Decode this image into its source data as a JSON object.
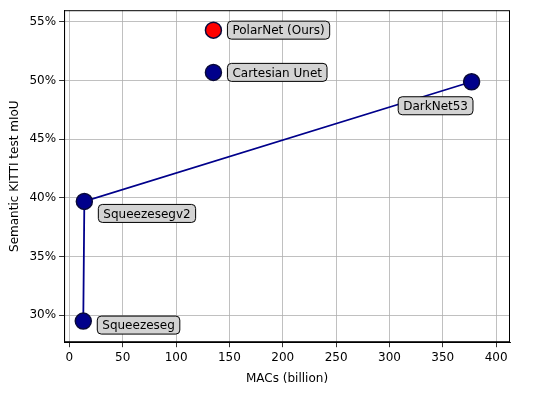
{
  "chart_data": {
    "type": "scatter",
    "x_label": "MACs (billion)",
    "y_label": "Semantic KITTI test mIoU",
    "xlim": [
      -5,
      413
    ],
    "xticks": [
      0,
      50,
      100,
      150,
      200,
      250,
      300,
      350,
      400
    ],
    "ylim": [
      27.7,
      56
    ],
    "yticks": [
      {
        "value": 30,
        "label": "30%"
      },
      {
        "value": 35,
        "label": "35%"
      },
      {
        "value": 40,
        "label": "40%"
      },
      {
        "value": 45,
        "label": "45%"
      },
      {
        "value": 50,
        "label": "50%"
      },
      {
        "value": 55,
        "label": "55%"
      }
    ],
    "grid": true,
    "series": [
      {
        "type": "line",
        "marker": "none",
        "line_style": "solid",
        "color": "#00008b",
        "x": [
          13,
          14,
          377
        ],
        "values": [
          29.5,
          39.7,
          49.9
        ]
      },
      {
        "type": "scatter",
        "marker": "circle",
        "x": [
          135,
          135,
          377,
          14,
          13
        ],
        "values": [
          54.3,
          50.7,
          49.9,
          39.7,
          29.5
        ],
        "labels": [
          "PolarNet (Ours)",
          "Cartesian Unet",
          "DarkNet53",
          "Squeezesegv2",
          "Squeezeseg"
        ],
        "colors": [
          "#ff0000",
          "#00008b",
          "#00008b",
          "#00008b",
          "#00008b"
        ]
      }
    ]
  }
}
